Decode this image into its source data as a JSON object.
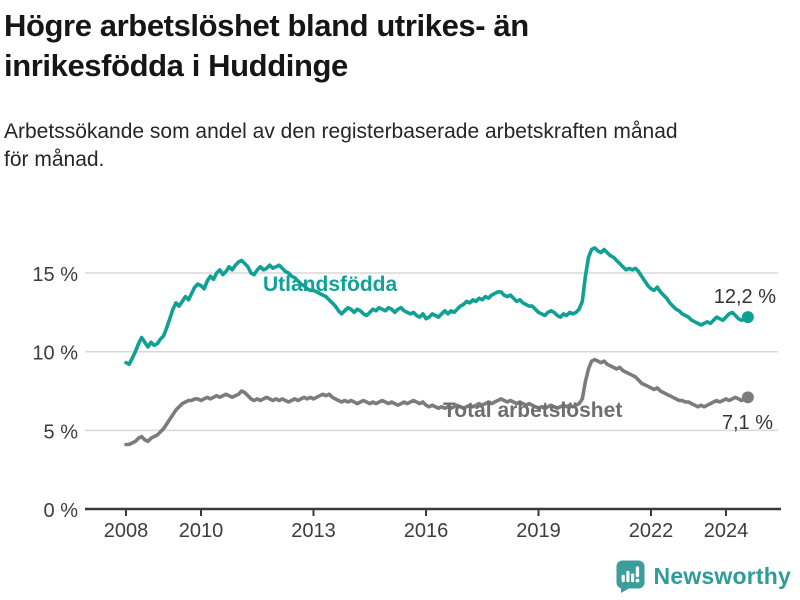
{
  "header": {
    "title": "Högre arbetslöshet bland utrikes- än inrikesfödda i Huddinge",
    "subtitle": "Arbetssökande som andel av den registerbaserade arbetskraften månad för månad."
  },
  "chart_data": {
    "type": "line",
    "title": "Högre arbetslöshet bland utrikes- än inrikesfödda i Huddinge",
    "x_start_year": 2008,
    "points_per_year": 12,
    "x_tick_years": [
      2008,
      2010,
      2013,
      2016,
      2019,
      2022,
      2024
    ],
    "x_tick_labels": [
      "2008",
      "2010",
      "2013",
      "2016",
      "2019",
      "2022",
      "2024"
    ],
    "y_ticks": [
      0,
      5,
      10,
      15
    ],
    "y_tick_labels": [
      "0 %",
      "5 %",
      "10 %",
      "15 %"
    ],
    "ylim": [
      0,
      17.5
    ],
    "grid": "horizontal",
    "legend_position": "inline-labels",
    "colors": {
      "gridline": "#d9d9d9",
      "axis": "#3a3a3a",
      "tick_text": "#3d3d3d",
      "value_label_text": "#333333"
    },
    "series": [
      {
        "name": "Utlandsfödda",
        "color": "#10a094",
        "label_color": "#12a196",
        "end_label": "12,2 %",
        "end_value": 12.2,
        "values": [
          9.3,
          9.2,
          9.6,
          10.0,
          10.5,
          10.9,
          10.6,
          10.3,
          10.6,
          10.4,
          10.5,
          10.8,
          11.0,
          11.5,
          12.1,
          12.7,
          13.1,
          12.9,
          13.2,
          13.5,
          13.3,
          13.7,
          14.1,
          14.3,
          14.2,
          14.0,
          14.5,
          14.8,
          14.6,
          15.0,
          15.2,
          14.9,
          15.1,
          15.4,
          15.2,
          15.5,
          15.7,
          15.8,
          15.6,
          15.4,
          15.0,
          14.9,
          15.2,
          15.4,
          15.2,
          15.3,
          15.5,
          15.3,
          15.4,
          15.5,
          15.3,
          15.1,
          15.0,
          14.8,
          14.7,
          14.5,
          14.3,
          14.2,
          14.0,
          13.9,
          13.9,
          13.8,
          13.7,
          13.6,
          13.5,
          13.3,
          13.1,
          12.9,
          12.6,
          12.4,
          12.6,
          12.8,
          12.7,
          12.5,
          12.7,
          12.6,
          12.4,
          12.3,
          12.5,
          12.7,
          12.6,
          12.8,
          12.7,
          12.6,
          12.8,
          12.7,
          12.5,
          12.7,
          12.8,
          12.6,
          12.5,
          12.4,
          12.5,
          12.3,
          12.2,
          12.4,
          12.1,
          12.2,
          12.4,
          12.3,
          12.2,
          12.4,
          12.6,
          12.4,
          12.6,
          12.5,
          12.7,
          12.9,
          13.0,
          13.2,
          13.1,
          13.3,
          13.2,
          13.4,
          13.3,
          13.5,
          13.4,
          13.6,
          13.7,
          13.8,
          13.8,
          13.6,
          13.5,
          13.6,
          13.4,
          13.2,
          13.3,
          13.1,
          13.0,
          12.9,
          12.9,
          12.7,
          12.5,
          12.4,
          12.3,
          12.5,
          12.6,
          12.5,
          12.3,
          12.2,
          12.4,
          12.3,
          12.5,
          12.4,
          12.5,
          12.7,
          13.2,
          14.8,
          16.0,
          16.5,
          16.6,
          16.4,
          16.3,
          16.5,
          16.3,
          16.1,
          16.0,
          15.8,
          15.6,
          15.4,
          15.2,
          15.3,
          15.2,
          15.3,
          15.1,
          14.8,
          14.5,
          14.2,
          14.0,
          13.9,
          14.1,
          13.8,
          13.6,
          13.4,
          13.1,
          12.9,
          12.7,
          12.6,
          12.4,
          12.3,
          12.2,
          12.0,
          11.9,
          11.8,
          11.7,
          11.8,
          11.9,
          11.8,
          12.0,
          12.2,
          12.1,
          12.0,
          12.2,
          12.4,
          12.5,
          12.3,
          12.1,
          12.0,
          12.1,
          12.2
        ]
      },
      {
        "name": "Total arbetslöshet",
        "color": "#7c7c7c",
        "label_color": "#6e6e6e",
        "end_label": "7,1 %",
        "end_value": 7.1,
        "values": [
          4.1,
          4.1,
          4.2,
          4.3,
          4.5,
          4.6,
          4.4,
          4.3,
          4.5,
          4.6,
          4.7,
          4.9,
          5.1,
          5.4,
          5.7,
          6.0,
          6.3,
          6.5,
          6.7,
          6.8,
          6.9,
          6.9,
          7.0,
          7.0,
          6.9,
          7.0,
          7.1,
          7.0,
          7.1,
          7.2,
          7.1,
          7.2,
          7.3,
          7.2,
          7.1,
          7.2,
          7.3,
          7.5,
          7.4,
          7.2,
          7.0,
          6.9,
          7.0,
          6.9,
          7.0,
          7.1,
          7.0,
          6.9,
          7.0,
          6.9,
          7.0,
          6.9,
          6.8,
          6.9,
          7.0,
          6.9,
          7.0,
          7.1,
          7.0,
          7.1,
          7.0,
          7.1,
          7.2,
          7.3,
          7.2,
          7.3,
          7.1,
          7.0,
          6.9,
          6.8,
          6.9,
          6.8,
          6.9,
          6.8,
          6.7,
          6.8,
          6.9,
          6.8,
          6.7,
          6.8,
          6.7,
          6.8,
          6.9,
          6.8,
          6.7,
          6.8,
          6.7,
          6.6,
          6.7,
          6.8,
          6.7,
          6.8,
          6.9,
          6.8,
          6.7,
          6.8,
          6.6,
          6.5,
          6.6,
          6.5,
          6.4,
          6.5,
          6.4,
          6.5,
          6.4,
          6.5,
          6.6,
          6.5,
          6.4,
          6.5,
          6.6,
          6.5,
          6.6,
          6.7,
          6.6,
          6.7,
          6.8,
          6.7,
          6.8,
          6.9,
          7.0,
          6.9,
          6.8,
          6.9,
          6.8,
          6.7,
          6.8,
          6.7,
          6.6,
          6.7,
          6.6,
          6.5,
          6.4,
          6.5,
          6.4,
          6.5,
          6.6,
          6.5,
          6.4,
          6.5,
          6.6,
          6.5,
          6.6,
          6.5,
          6.6,
          6.7,
          7.0,
          8.1,
          8.9,
          9.4,
          9.5,
          9.4,
          9.3,
          9.4,
          9.2,
          9.1,
          9.0,
          8.9,
          9.0,
          8.8,
          8.7,
          8.6,
          8.5,
          8.4,
          8.2,
          8.0,
          7.9,
          7.8,
          7.7,
          7.6,
          7.7,
          7.5,
          7.4,
          7.3,
          7.2,
          7.1,
          7.0,
          6.9,
          6.9,
          6.8,
          6.8,
          6.7,
          6.6,
          6.5,
          6.6,
          6.5,
          6.6,
          6.7,
          6.8,
          6.9,
          6.8,
          6.9,
          7.0,
          6.9,
          7.0,
          7.1,
          7.0,
          6.9,
          7.0,
          7.1
        ]
      }
    ]
  },
  "branding": {
    "logo_text": "Newsworthy",
    "logo_icon": "speech-bubble-bar-chart-icon",
    "logo_icon_color": "#3b9e9b",
    "logo_text_color": "#2e9c99"
  }
}
